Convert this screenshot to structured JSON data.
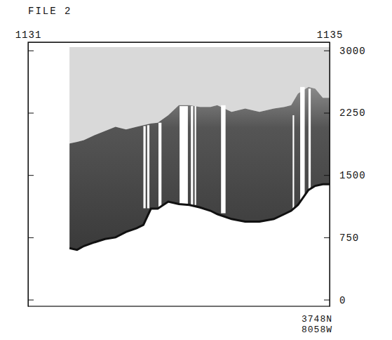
{
  "chart_data": {
    "type": "area",
    "title": "FILE 2",
    "x": [
      1131.55,
      1131.65,
      1131.74,
      1131.88,
      1132.02,
      1132.16,
      1132.3,
      1132.44,
      1132.53,
      1132.63,
      1132.72,
      1132.86,
      1133.0,
      1133.14,
      1133.28,
      1133.42,
      1133.51,
      1133.7,
      1133.88,
      1134.07,
      1134.26,
      1134.4,
      1134.49,
      1134.58,
      1134.72,
      1134.81,
      1134.91,
      1135.0
    ],
    "values": [
      620,
      600,
      645,
      690,
      730,
      750,
      815,
      860,
      900,
      1095,
      1095,
      1180,
      1150,
      1140,
      1110,
      1070,
      1030,
      970,
      940,
      940,
      970,
      1030,
      1070,
      1140,
      1320,
      1370,
      1390,
      1390
    ],
    "upper": [
      1880,
      1900,
      1920,
      1980,
      2030,
      2080,
      2050,
      2080,
      2100,
      2120,
      2130,
      2220,
      2340,
      2340,
      2320,
      2320,
      2340,
      2260,
      2300,
      2260,
      2300,
      2320,
      2340,
      2480,
      2560,
      2540,
      2430,
      2430
    ],
    "band_top": 3040,
    "dropouts": [
      {
        "x": [
          1132.53,
          1132.56
        ],
        "y": [
          1100,
          2090
        ]
      },
      {
        "x": [
          1132.58,
          1132.61
        ],
        "y": [
          1100,
          2100
        ]
      },
      {
        "x": [
          1132.73,
          1132.77
        ],
        "y": [
          1100,
          2130
        ]
      },
      {
        "x": [
          1133.01,
          1133.12
        ],
        "y": [
          1150,
          2330
        ]
      },
      {
        "x": [
          1133.16,
          1133.19
        ],
        "y": [
          1140,
          2330
        ]
      },
      {
        "x": [
          1133.21,
          1133.23
        ],
        "y": [
          1140,
          2330
        ]
      },
      {
        "x": [
          1133.56,
          1133.62
        ],
        "y": [
          1040,
          2340
        ]
      },
      {
        "x": [
          1134.51,
          1134.53
        ],
        "y": [
          1080,
          2220
        ]
      },
      {
        "x": [
          1134.61,
          1134.67
        ],
        "y": [
          1150,
          2560
        ]
      },
      {
        "x": [
          1134.72,
          1134.75
        ],
        "y": [
          1320,
          2540
        ]
      }
    ],
    "xlim": [
      1131,
      1135
    ],
    "xticks": [
      1131,
      1135
    ],
    "ylim": [
      -80,
      3100
    ],
    "yticks": [
      0,
      750,
      1500,
      2250,
      3000
    ],
    "annotations": [
      "3748N",
      "8058W"
    ]
  }
}
